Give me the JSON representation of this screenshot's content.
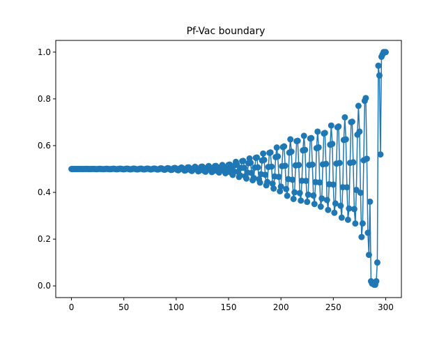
{
  "chart_data": {
    "type": "line",
    "title": "Pf-Vac boundary",
    "xlabel": "",
    "ylabel": "",
    "xlim": [
      -15,
      315
    ],
    "ylim": [
      -0.05,
      1.05
    ],
    "x_ticks": [
      0,
      50,
      100,
      150,
      200,
      250,
      300
    ],
    "x_tick_labels": [
      "0",
      "50",
      "100",
      "150",
      "200",
      "250",
      "300"
    ],
    "y_ticks": [
      0.0,
      0.2,
      0.4,
      0.6,
      0.8,
      1.0
    ],
    "y_tick_labels": [
      "0.0",
      "0.2",
      "0.4",
      "0.6",
      "0.8",
      "1.0"
    ],
    "grid": false,
    "marker": "circle",
    "series": [
      {
        "color": "#1f77b4",
        "envelope_x": [
          0,
          80,
          100,
          120,
          140,
          150,
          160,
          170,
          180,
          190,
          200,
          210,
          220,
          230,
          240,
          250,
          260,
          270,
          280,
          285,
          288,
          290,
          292,
          294,
          296,
          298,
          300
        ],
        "envelope_amp": [
          0,
          0.002,
          0.005,
          0.01,
          0.015,
          0.02,
          0.035,
          0.045,
          0.06,
          0.08,
          0.1,
          0.13,
          0.14,
          0.15,
          0.17,
          0.19,
          0.22,
          0.23,
          0.33,
          0.39,
          0.47,
          0.49,
          0.5,
          0.5,
          0.5,
          0.5,
          0.5
        ],
        "period": 6.5,
        "end_values": {
          "x": [
            292,
            294,
            296,
            297,
            298,
            299,
            300
          ],
          "y": [
            0.1,
            0.9,
            0.98,
            0.99,
            1.0,
            1.0,
            1.0
          ]
        }
      }
    ]
  }
}
